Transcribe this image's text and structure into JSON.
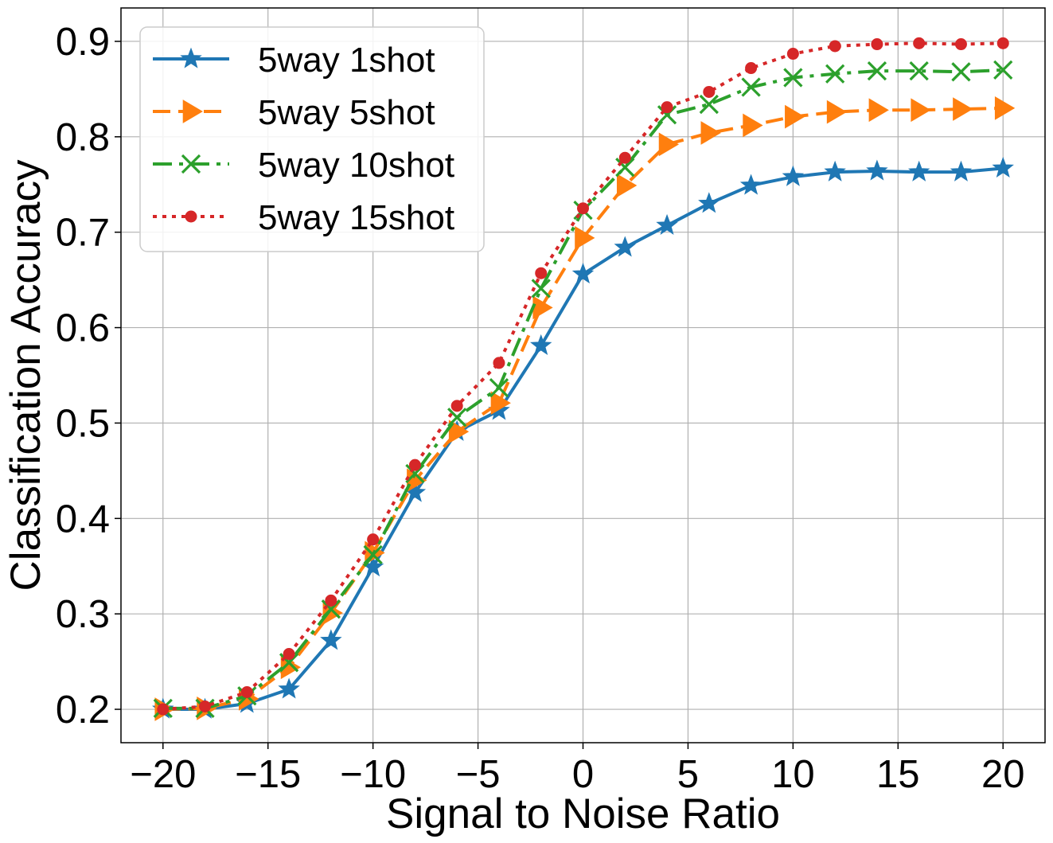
{
  "chart_data": {
    "type": "line",
    "title": "",
    "xlabel": "Signal to Noise Ratio",
    "ylabel": "Classification Accuracy",
    "xlim": [
      -22,
      22
    ],
    "ylim": [
      0.165,
      0.935
    ],
    "x_ticks": [
      -20,
      -15,
      -10,
      -5,
      0,
      5,
      10,
      15,
      20
    ],
    "x_tick_labels": [
      "−20",
      "−15",
      "−10",
      "−5",
      "0",
      "5",
      "10",
      "15",
      "20"
    ],
    "y_ticks": [
      0.2,
      0.3,
      0.4,
      0.5,
      0.6,
      0.7,
      0.8,
      0.9
    ],
    "y_tick_labels": [
      "0.2",
      "0.3",
      "0.4",
      "0.5",
      "0.6",
      "0.7",
      "0.8",
      "0.9"
    ],
    "grid": true,
    "legend_position": "top-left",
    "x": [
      -20,
      -18,
      -16,
      -14,
      -12,
      -10,
      -8,
      -6,
      -4,
      -2,
      0,
      2,
      4,
      6,
      8,
      10,
      12,
      14,
      16,
      18,
      20
    ],
    "series": [
      {
        "name": "5way 1shot",
        "color": "#1f77b4",
        "line_style": "solid",
        "marker": "star",
        "values": [
          0.2,
          0.2,
          0.206,
          0.221,
          0.272,
          0.349,
          0.427,
          0.491,
          0.513,
          0.581,
          0.656,
          0.684,
          0.707,
          0.73,
          0.749,
          0.758,
          0.763,
          0.764,
          0.763,
          0.763,
          0.767
        ]
      },
      {
        "name": "5way 5shot",
        "color": "#ff7f0e",
        "line_style": "dashed",
        "marker": "triangle-right",
        "values": [
          0.2,
          0.201,
          0.211,
          0.244,
          0.301,
          0.364,
          0.44,
          0.491,
          0.521,
          0.621,
          0.694,
          0.749,
          0.792,
          0.804,
          0.812,
          0.821,
          0.826,
          0.828,
          0.828,
          0.829,
          0.83
        ]
      },
      {
        "name": "5way 10shot",
        "color": "#2ca02c",
        "line_style": "dashdot",
        "marker": "x",
        "values": [
          0.201,
          0.201,
          0.214,
          0.249,
          0.305,
          0.362,
          0.447,
          0.506,
          0.537,
          0.641,
          0.723,
          0.768,
          0.823,
          0.834,
          0.852,
          0.862,
          0.866,
          0.869,
          0.869,
          0.868,
          0.87
        ]
      },
      {
        "name": "5way 15shot",
        "color": "#d62728",
        "line_style": "dotted",
        "marker": "circle",
        "values": [
          0.2,
          0.203,
          0.218,
          0.258,
          0.314,
          0.378,
          0.456,
          0.518,
          0.563,
          0.657,
          0.725,
          0.778,
          0.831,
          0.847,
          0.872,
          0.887,
          0.895,
          0.897,
          0.898,
          0.897,
          0.898
        ]
      }
    ]
  }
}
